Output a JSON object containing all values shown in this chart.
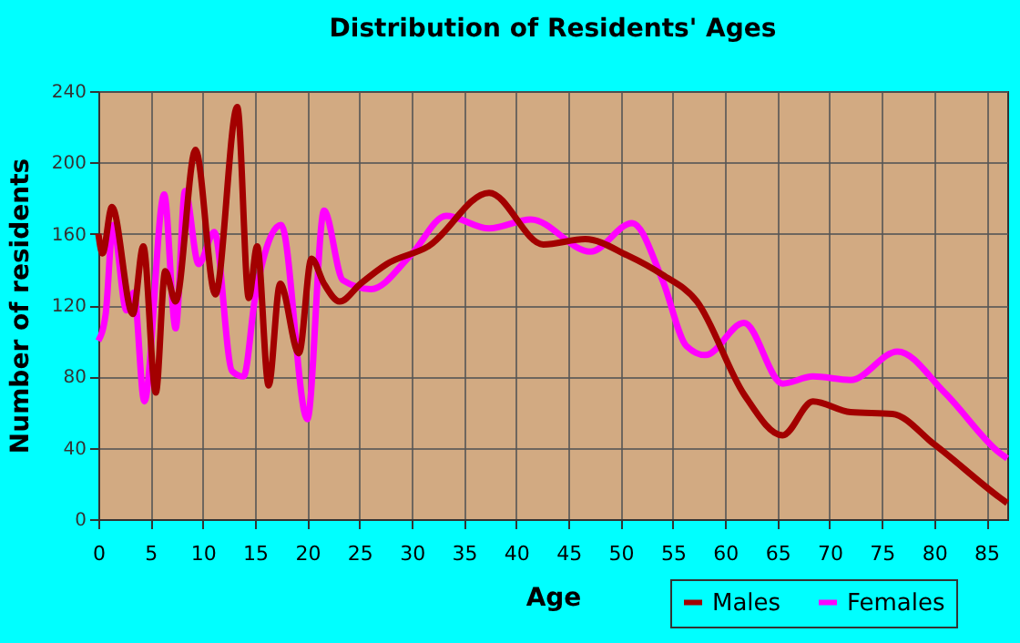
{
  "chart_data": {
    "type": "line",
    "title": "Distribution of Residents' Ages",
    "xlabel": "Age",
    "ylabel": "Number of residents",
    "xlim": [
      0,
      87
    ],
    "xticks": [
      0,
      5,
      10,
      15,
      20,
      25,
      30,
      35,
      40,
      45,
      50,
      55,
      60,
      65,
      70,
      75,
      80,
      85
    ],
    "ylim": [
      0,
      240
    ],
    "yticks": [
      0,
      40,
      80,
      120,
      160,
      200,
      240
    ],
    "grid": true,
    "legend": "bottom right",
    "marker": "none",
    "line_style": "solid",
    "series": [
      {
        "name": "Males",
        "color": "#a30000",
        "x": [
          0,
          0.4,
          1.3,
          3.3,
          4.3,
          5.5,
          6.4,
          7.4,
          9.3,
          11.2,
          13.3,
          14.4,
          15.2,
          16.3,
          17.4,
          19.2,
          20.4,
          21.6,
          23.1,
          25.1,
          27.6,
          31.6,
          37.4,
          42.6,
          46.6,
          50.6,
          54,
          57.3,
          61.8,
          65.5,
          68.4,
          72,
          76,
          80,
          86.3,
          87
        ],
        "values": [
          160,
          149,
          175,
          115,
          153,
          71,
          139,
          122,
          207,
          126,
          231,
          124,
          153,
          75,
          132,
          93,
          146,
          132,
          122,
          132,
          143,
          153,
          183,
          154,
          157,
          148,
          137,
          122,
          70,
          47,
          66,
          60,
          59,
          42,
          12,
          9
        ]
      },
      {
        "name": "Females",
        "color": "#ff00ff",
        "x": [
          0,
          0.7,
          1.4,
          2.7,
          3.4,
          4.4,
          6.3,
          7.4,
          8.3,
          9.6,
          11.1,
          12.8,
          13.9,
          15,
          17.5,
          20,
          21.6,
          23.4,
          26.1,
          29.9,
          33.3,
          37.4,
          41.4,
          47.1,
          51.1,
          54,
          56.3,
          58.1,
          61.8,
          65.5,
          68.4,
          72,
          76.5,
          81,
          86.3,
          87
        ],
        "values": [
          100,
          115,
          165,
          117,
          127,
          66,
          182,
          107,
          184,
          143,
          161,
          83,
          80,
          124,
          165,
          56,
          173,
          134,
          129,
          148,
          170,
          163,
          168,
          150,
          166,
          134,
          97,
          92,
          110,
          76,
          80,
          78,
          94,
          71,
          37,
          34
        ]
      }
    ]
  }
}
